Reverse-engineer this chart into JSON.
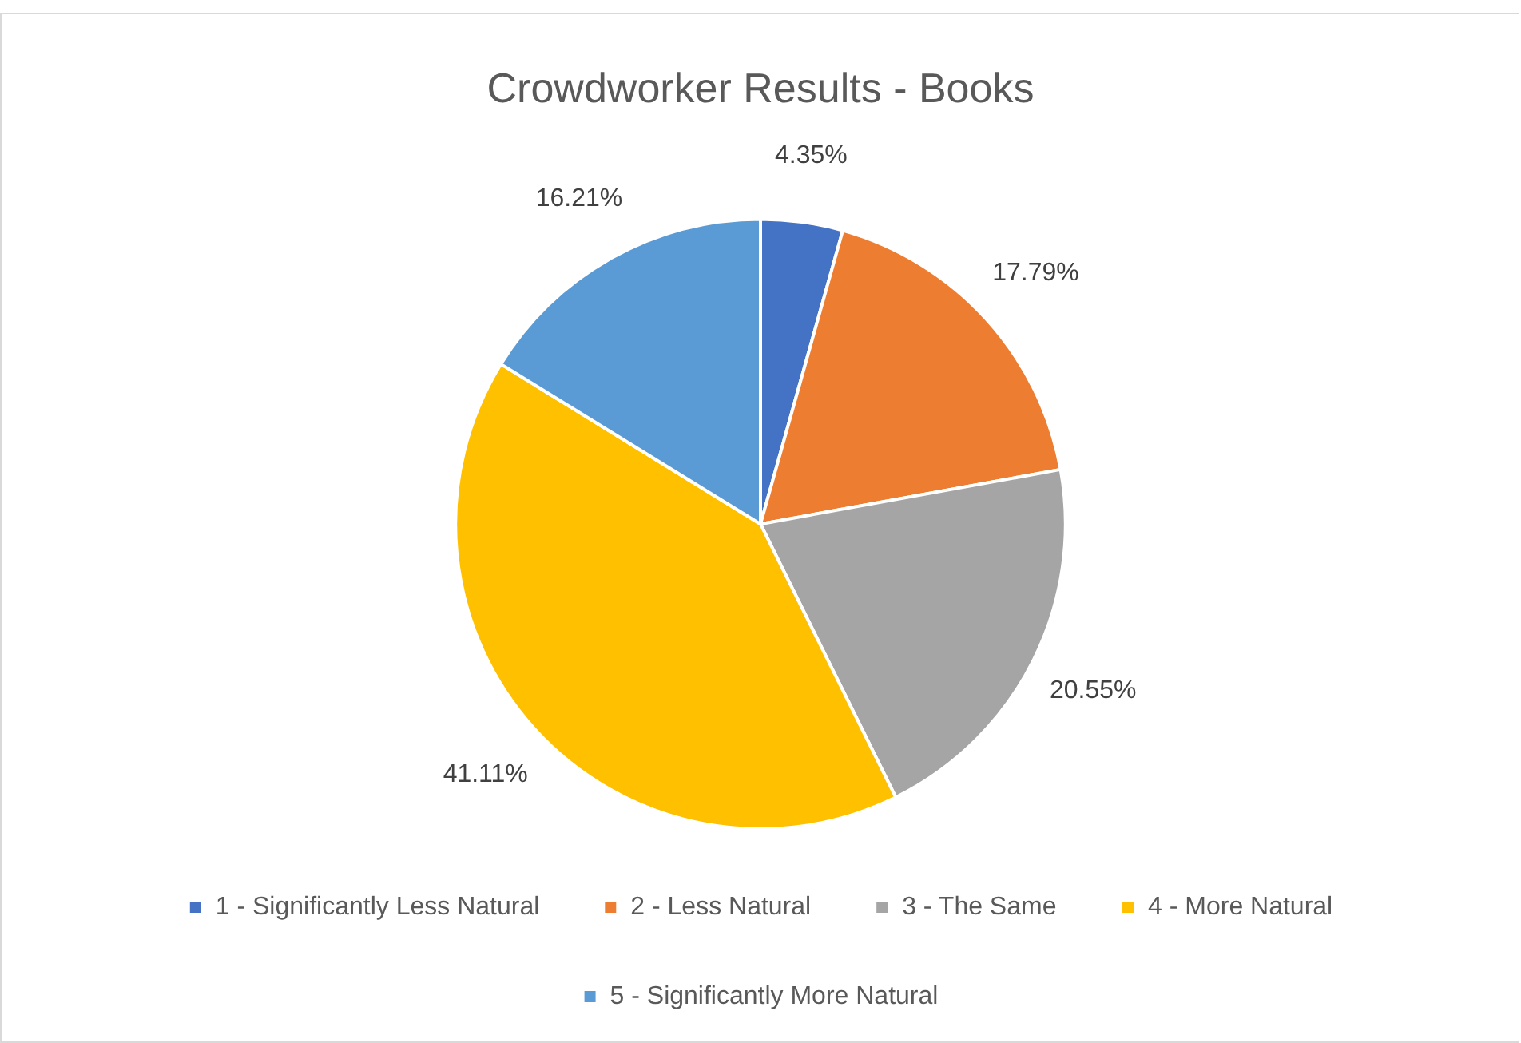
{
  "chart_data": {
    "type": "pie",
    "title": "Crowdworker Results - Books",
    "categories": [
      "1 - Significantly Less Natural",
      "2 - Less Natural",
      "3 - The Same",
      "4 - More Natural",
      "5 - Significantly More Natural"
    ],
    "values": [
      4.35,
      17.79,
      20.55,
      41.11,
      16.21
    ],
    "colors": [
      "#4472c4",
      "#ed7d31",
      "#a5a5a5",
      "#ffc000",
      "#5b9bd5"
    ],
    "value_labels": [
      "4.35%",
      "17.79%",
      "20.55%",
      "41.11%",
      "16.21%"
    ],
    "legend": "bottom"
  }
}
